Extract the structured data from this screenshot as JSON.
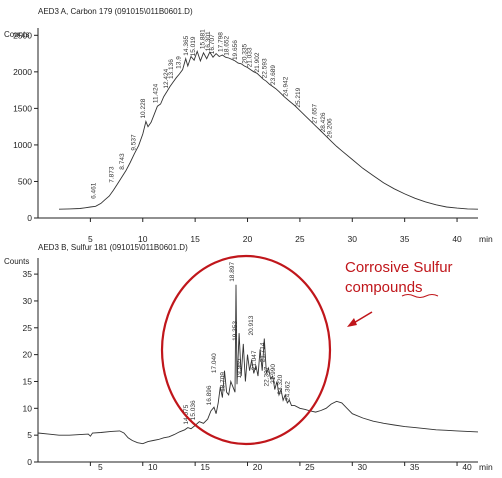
{
  "chart_data": [
    {
      "type": "line",
      "header": "AED3 A, Carbon 179 (091015\\011B0601.D)",
      "ylabel": "Counts",
      "xunit": "min",
      "xlim": [
        0,
        42
      ],
      "ylim": [
        0,
        2600
      ],
      "xticks": [
        5,
        10,
        15,
        20,
        25,
        30,
        35,
        40
      ],
      "yticks": [
        0,
        500,
        1000,
        1500,
        2000,
        2500
      ],
      "x": [
        2,
        3,
        4,
        4.5,
        5,
        5.5,
        6,
        6.4,
        6.8,
        7.2,
        7.6,
        8,
        8.4,
        8.8,
        9.2,
        9.6,
        10.0,
        10.3,
        10.5,
        10.8,
        11.1,
        11.4,
        11.7,
        12.0,
        12.3,
        12.6,
        12.9,
        13.2,
        13.5,
        13.8,
        14.1,
        14.3,
        14.6,
        14.9,
        15.2,
        15.5,
        15.8,
        16.1,
        16.4,
        16.7,
        17.0,
        17.3,
        17.6,
        17.9,
        18.2,
        18.5,
        18.8,
        19.1,
        19.4,
        19.7,
        20.0,
        20.3,
        20.6,
        20.9,
        21.2,
        21.5,
        21.8,
        22.1,
        22.4,
        22.7,
        23.0,
        23.5,
        24.0,
        24.5,
        25.0,
        25.5,
        26.0,
        26.5,
        27.0,
        27.5,
        28.0,
        28.5,
        29.0,
        30,
        31,
        32,
        33,
        34,
        35,
        36,
        37,
        38,
        39,
        40,
        41,
        42
      ],
      "y": [
        120,
        125,
        130,
        140,
        150,
        160,
        200,
        250,
        300,
        380,
        470,
        560,
        650,
        760,
        880,
        990,
        1150,
        1320,
        1250,
        1310,
        1420,
        1530,
        1560,
        1660,
        1730,
        1800,
        1860,
        1920,
        1970,
        2030,
        2180,
        2080,
        2210,
        2160,
        2280,
        2150,
        2260,
        2180,
        2270,
        2200,
        2250,
        2210,
        2230,
        2200,
        2190,
        2170,
        2150,
        2120,
        2110,
        2080,
        2060,
        2030,
        2000,
        1980,
        1940,
        1900,
        1870,
        1830,
        1800,
        1770,
        1730,
        1660,
        1600,
        1540,
        1470,
        1400,
        1330,
        1260,
        1190,
        1120,
        1050,
        980,
        920,
        800,
        680,
        580,
        480,
        400,
        330,
        270,
        220,
        180,
        150,
        135,
        125,
        120
      ],
      "peak_labels": [
        {
          "x": 5.5,
          "y": 220,
          "label": "6.461"
        },
        {
          "x": 7.2,
          "y": 440,
          "label": "7.873"
        },
        {
          "x": 8.2,
          "y": 620,
          "label": "8.743"
        },
        {
          "x": 9.3,
          "y": 880,
          "label": "9.537"
        },
        {
          "x": 10.2,
          "y": 1320,
          "label": "10.228"
        },
        {
          "x": 11.4,
          "y": 1530,
          "label": "11.424"
        },
        {
          "x": 12.4,
          "y": 1730,
          "label": "12.424"
        },
        {
          "x": 12.9,
          "y": 1860,
          "label": "13.136"
        },
        {
          "x": 13.6,
          "y": 2000,
          "label": "13.9"
        },
        {
          "x": 14.3,
          "y": 2180,
          "label": "14.365"
        },
        {
          "x": 15.0,
          "y": 2170,
          "label": "15.019"
        },
        {
          "x": 15.9,
          "y": 2270,
          "label": "15.881"
        },
        {
          "x": 16.4,
          "y": 2240,
          "label": "16.301"
        },
        {
          "x": 16.8,
          "y": 2200,
          "label": "16.707"
        },
        {
          "x": 17.6,
          "y": 2230,
          "label": "17.798"
        },
        {
          "x": 18.2,
          "y": 2180,
          "label": "18.652"
        },
        {
          "x": 19.0,
          "y": 2120,
          "label": "19.656"
        },
        {
          "x": 19.9,
          "y": 2070,
          "label": "20.335"
        },
        {
          "x": 20.4,
          "y": 2020,
          "label": "21.033"
        },
        {
          "x": 21.1,
          "y": 1950,
          "label": "21.902"
        },
        {
          "x": 21.8,
          "y": 1870,
          "label": "22.593"
        },
        {
          "x": 22.6,
          "y": 1780,
          "label": "23.689"
        },
        {
          "x": 23.8,
          "y": 1620,
          "label": "24.942"
        },
        {
          "x": 25.0,
          "y": 1470,
          "label": "25.219"
        },
        {
          "x": 26.6,
          "y": 1250,
          "label": "27.657"
        },
        {
          "x": 27.4,
          "y": 1130,
          "label": "28.426"
        },
        {
          "x": 28.0,
          "y": 1050,
          "label": "29.206"
        }
      ]
    },
    {
      "type": "line",
      "header": "AED3 B, Sulfur 181 (091015\\011B0601.D)",
      "ylabel": "Counts",
      "xunit": "min",
      "xlim": [
        0,
        42
      ],
      "ylim": [
        0,
        38
      ],
      "xticks": [
        5,
        10,
        15,
        20,
        25,
        30,
        35,
        40
      ],
      "yticks": [
        0,
        5,
        10,
        15,
        20,
        25,
        30,
        35
      ],
      "x": [
        0,
        1,
        2,
        3,
        4,
        4.8,
        5.0,
        5.2,
        6,
        7,
        7.8,
        8.2,
        8.6,
        9,
        9.5,
        10,
        10.5,
        11,
        11.5,
        12,
        12.5,
        13,
        13.5,
        14,
        14.3,
        14.6,
        15,
        15.4,
        15.8,
        16.2,
        16.5,
        16.8,
        17.0,
        17.2,
        17.4,
        17.6,
        17.8,
        18.0,
        18.2,
        18.4,
        18.6,
        18.8,
        18.9,
        19.0,
        19.2,
        19.4,
        19.6,
        19.8,
        20.0,
        20.2,
        20.4,
        20.6,
        20.8,
        21.0,
        21.2,
        21.4,
        21.6,
        21.8,
        22.0,
        22.2,
        22.4,
        22.6,
        22.8,
        23.0,
        23.2,
        23.4,
        23.6,
        23.8,
        24.0,
        24.2,
        24.5,
        25,
        25.5,
        26,
        26.5,
        27,
        27.5,
        28,
        28.5,
        29,
        29.5,
        30,
        31,
        32,
        33,
        34,
        35,
        36,
        37,
        38,
        39,
        40,
        41,
        42
      ],
      "y": [
        5.4,
        5.2,
        5.0,
        5.0,
        5.1,
        5.2,
        4.8,
        5.4,
        5.5,
        5.7,
        5.8,
        5.4,
        4.5,
        4.0,
        3.6,
        3.4,
        3.8,
        4.0,
        4.2,
        4.5,
        4.7,
        5.1,
        5.6,
        6.0,
        6.4,
        6.2,
        6.8,
        7.5,
        7.2,
        8.0,
        9.5,
        10.2,
        9.0,
        11.0,
        14.0,
        12.0,
        17.0,
        13.0,
        12.5,
        15.0,
        14.0,
        13.0,
        33.0,
        14.5,
        24.0,
        16.0,
        22.0,
        15.0,
        20.0,
        17.0,
        19.0,
        16.5,
        18.0,
        16.0,
        21.0,
        17.0,
        23.0,
        16.5,
        17.5,
        15.5,
        16.0,
        13.5,
        15.0,
        12.5,
        13.5,
        11.5,
        12.5,
        11.0,
        11.5,
        10.5,
        10.5,
        10.0,
        9.8,
        9.5,
        9.3,
        9.6,
        10.0,
        10.8,
        11.3,
        11.0,
        10.0,
        9.0,
        8.2,
        7.6,
        7.2,
        6.9,
        6.6,
        6.4,
        6.2,
        6.0,
        5.9,
        5.8,
        5.7,
        5.6
      ],
      "peak_labels": [
        {
          "x": 14.3,
          "y": 6.4,
          "label": "14.075"
        },
        {
          "x": 15.0,
          "y": 7.2,
          "label": "15.036"
        },
        {
          "x": 16.5,
          "y": 10.0,
          "label": "16.896"
        },
        {
          "x": 17.0,
          "y": 16.0,
          "label": "17.040"
        },
        {
          "x": 17.8,
          "y": 12.5,
          "label": "18.709"
        },
        {
          "x": 18.7,
          "y": 33.0,
          "label": "18.897"
        },
        {
          "x": 19.0,
          "y": 22.0,
          "label": "19.353"
        },
        {
          "x": 19.4,
          "y": 15.0,
          "label": "19.965"
        },
        {
          "x": 20.5,
          "y": 23.0,
          "label": "20.913"
        },
        {
          "x": 20.8,
          "y": 16.5,
          "label": "21.047"
        },
        {
          "x": 21.6,
          "y": 18.0,
          "label": "21.714"
        },
        {
          "x": 22.0,
          "y": 13.5,
          "label": "22.307"
        },
        {
          "x": 22.6,
          "y": 14.0,
          "label": "21.990"
        },
        {
          "x": 23.3,
          "y": 12.0,
          "label": "23.320"
        },
        {
          "x": 24.0,
          "y": 10.8,
          "label": "24.362"
        }
      ]
    }
  ],
  "annotation": {
    "text_line1": "Corrosive Sulfur",
    "text_line2": "compounds",
    "color": "#c0161b"
  }
}
